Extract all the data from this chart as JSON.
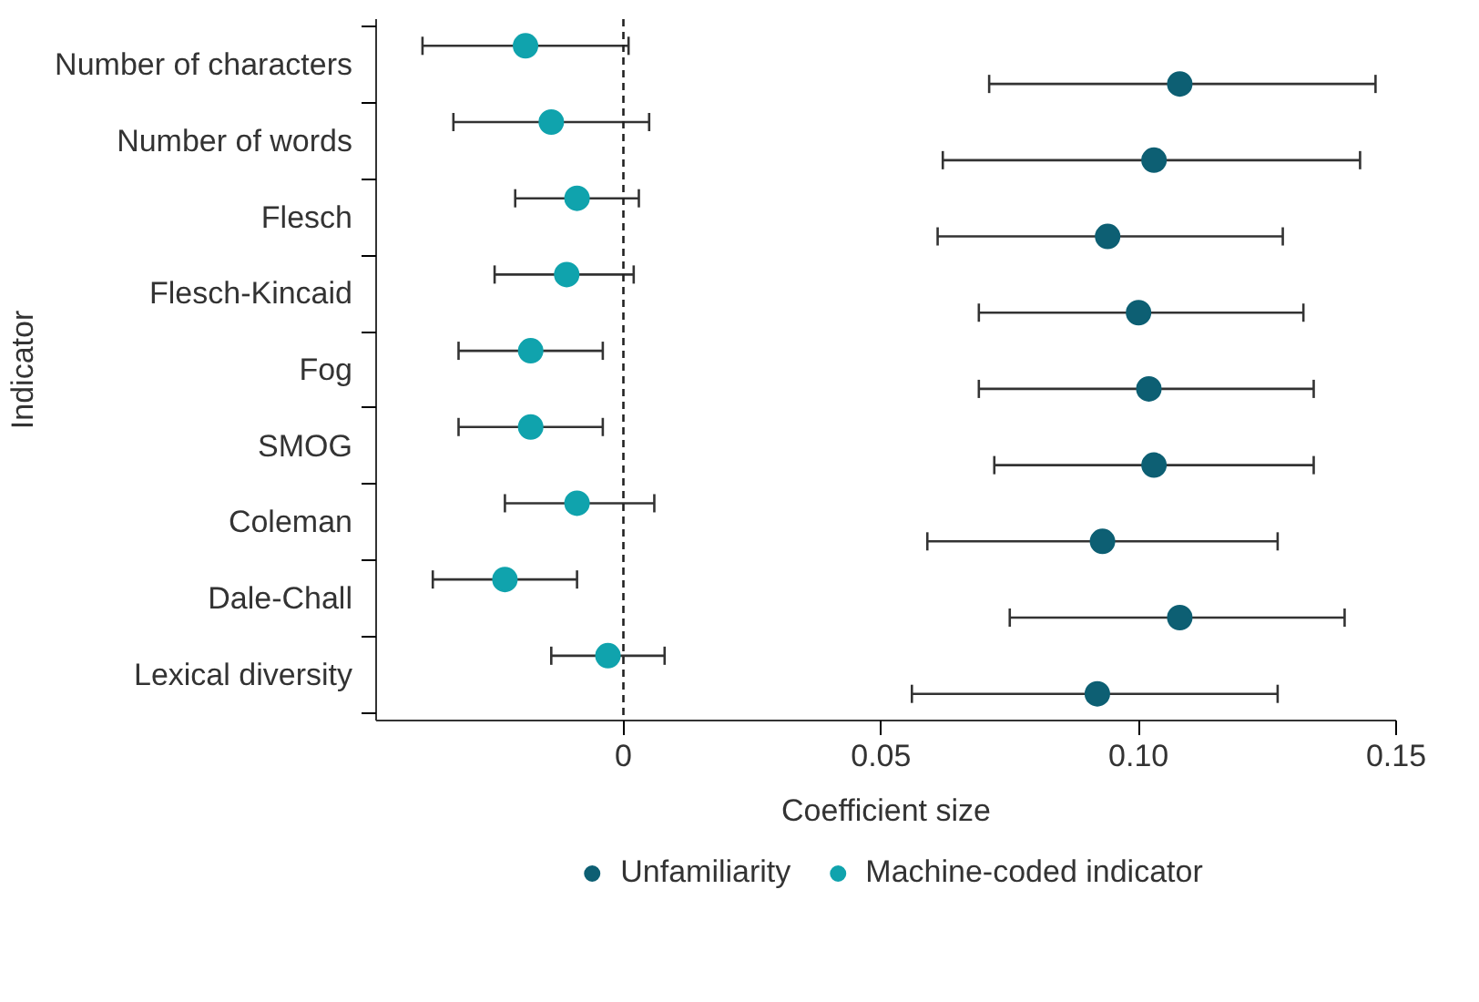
{
  "chart_data": {
    "type": "scatter",
    "orientation": "horizontal",
    "categories": [
      "Number of characters",
      "Number of words",
      "Flesch",
      "Flesch-Kincaid",
      "Fog",
      "SMOG",
      "Coleman",
      "Dale-Chall",
      "Lexical diversity"
    ],
    "xlabel": "Coefficient size",
    "ylabel": "Indicator",
    "xlim": [
      -0.048,
      0.15
    ],
    "xticks": [
      0,
      0.05,
      {
        "value": 0.1,
        "label": "0.10"
      },
      0.15
    ],
    "series": [
      {
        "name": "Unfamiliarity",
        "color": "#0d5f73",
        "values": [
          0.108,
          0.103,
          0.094,
          0.1,
          0.102,
          0.103,
          0.093,
          0.108,
          0.092
        ],
        "errors": [
          [
            0.071,
            0.146
          ],
          [
            0.062,
            0.143
          ],
          [
            0.061,
            0.128
          ],
          [
            0.069,
            0.132
          ],
          [
            0.069,
            0.134
          ],
          [
            0.072,
            0.134
          ],
          [
            0.059,
            0.127
          ],
          [
            0.075,
            0.14
          ],
          [
            0.056,
            0.127
          ]
        ]
      },
      {
        "name": "Machine-coded indicator",
        "color": "#10a3ad",
        "values": [
          -0.019,
          -0.014,
          -0.009,
          -0.011,
          -0.018,
          -0.018,
          -0.009,
          -0.023,
          -0.003
        ],
        "errors": [
          [
            -0.039,
            0.001
          ],
          [
            -0.033,
            0.005
          ],
          [
            -0.021,
            0.003
          ],
          [
            -0.025,
            0.002
          ],
          [
            -0.032,
            -0.004
          ],
          [
            -0.032,
            -0.004
          ],
          [
            -0.023,
            0.006
          ],
          [
            -0.037,
            -0.009
          ],
          [
            -0.014,
            0.008
          ]
        ]
      }
    ],
    "ref_lines": [
      {
        "axis": "x",
        "value": 0,
        "line_style": "dashed"
      }
    ],
    "marker": "circle",
    "grid": false,
    "legend": "bottom"
  }
}
